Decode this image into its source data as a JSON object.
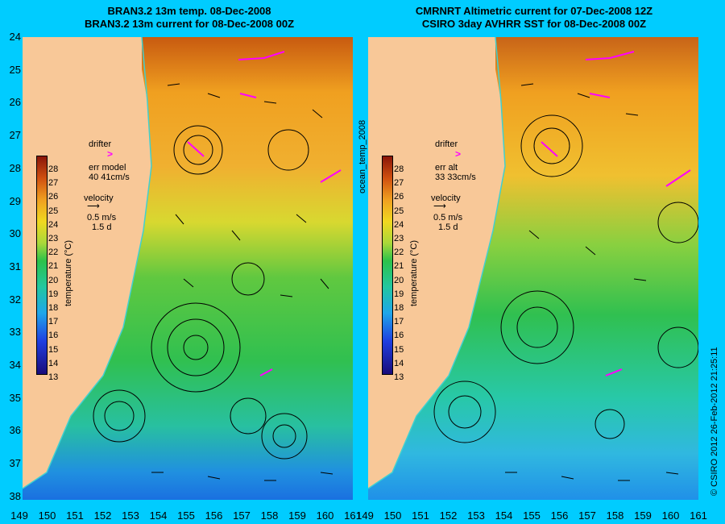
{
  "left_panel": {
    "title_line1": "BRAN3.2 13m temp. 08-Dec-2008",
    "title_line2": "BRAN3.2 13m current for 08-Dec-2008 00Z",
    "drifter_label": "drifter",
    "drifter_symbol": ">",
    "err_line1": "err model",
    "err_line2": "40 41cm/s",
    "velocity_label": "velocity",
    "velocity_scale": "0.5 m/s",
    "velocity_days": "1.5 d"
  },
  "right_panel": {
    "title_line1": "CMRNRT Altimetric current for 07-Dec-2008 12Z",
    "title_line2": "CSIRO 3day AVHRR SST for 08-Dec-2008 00Z",
    "drifter_label": "drifter",
    "drifter_symbol": ">",
    "err_line1": "err alt",
    "err_line2": "33 33cm/s",
    "velocity_label": "velocity",
    "velocity_scale": "0.5 m/s",
    "velocity_days": "1.5 d"
  },
  "colorbar": {
    "title": "temperature (°C)",
    "labels": [
      "28",
      "27",
      "26",
      "25",
      "24",
      "23",
      "22",
      "21",
      "20",
      "19",
      "18",
      "17",
      "16",
      "15",
      "14",
      "13"
    ]
  },
  "map": {
    "lat_labels": [
      "24",
      "25",
      "26",
      "27",
      "28",
      "29",
      "30",
      "31",
      "32",
      "33",
      "34",
      "35",
      "36",
      "37",
      "38"
    ],
    "lon_labels": [
      "149",
      "150",
      "151",
      "152",
      "153",
      "154",
      "155",
      "156",
      "157",
      "158",
      "159",
      "160",
      "161",
      "149",
      "150",
      "151",
      "152",
      "153",
      "154",
      "155",
      "156",
      "157",
      "158",
      "159",
      "160",
      "161"
    ],
    "colors": {
      "land": "#f8c898",
      "warm": "#f0a020",
      "mid": "#2cc24a",
      "cool": "#1fa6ea",
      "drifter": "#ff00ff",
      "frame": "#00ccff"
    }
  },
  "side_label": "ocean_temp_2008",
  "credit": "© CSIRO 2012   26-Feb-2012 21:25:11"
}
